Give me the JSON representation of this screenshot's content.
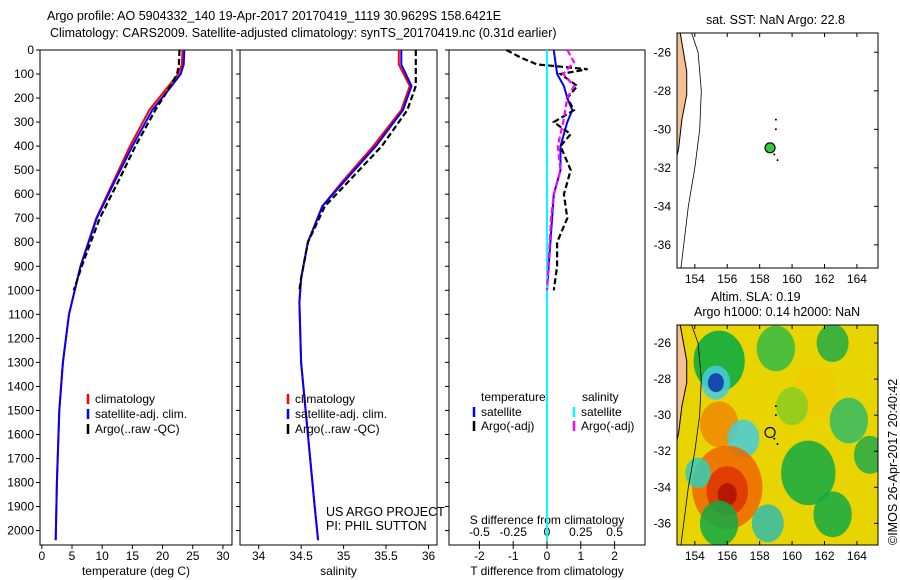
{
  "title_line1": "Argo profile: AO 5904332_140 19-Apr-2017 20170419_1119 30.9629S 158.6421E",
  "title_line2": "Climatology: CARS2009. Satellite-adjusted climatology: synTS_20170419.nc (0.31d earlier)",
  "project_line1": "US ARGO PROJECT",
  "project_line2": "PI: PHIL SUTTON",
  "map1_title": "sat. SST: NaN Argo: 22.8",
  "map2_title1": "Altim. SLA: 0.19",
  "map2_title2": "Argo h1000: 0.14 h2000: NaN",
  "credit": "©IMOS 26-Apr-2017 20:40:42",
  "colors": {
    "climatology": "#ff0000",
    "satellite": "#0000ff",
    "argo": "#000000",
    "sal_sat": "#00ffff",
    "sal_argo": "#ff00ff",
    "land": "#f5c193",
    "point": "#33cc33"
  },
  "chart_data": [
    {
      "type": "line",
      "name": "temperature",
      "xlabel": "temperature (deg C)",
      "ylabel": "",
      "xlim": [
        -0.3,
        31.5
      ],
      "ylim": [
        2060,
        0
      ],
      "xticks": [
        "0",
        "5",
        "10",
        "15",
        "20",
        "25",
        "30"
      ],
      "yticks": [
        "0",
        "100",
        "200",
        "300",
        "400",
        "500",
        "600",
        "700",
        "800",
        "900",
        "1000",
        "1100",
        "1200",
        "1300",
        "1400",
        "1500",
        "1600",
        "1700",
        "1800",
        "1900",
        "2000"
      ],
      "legend": [
        "climatology",
        "satellite-adj. clim.",
        "Argo(..raw -QC)"
      ],
      "series": [
        {
          "name": "climatology",
          "color": "#ff0000",
          "depth": [
            0,
            60,
            100,
            150,
            250,
            400,
            550,
            700,
            900,
            1100,
            1300,
            1500,
            1800,
            2040
          ],
          "values": [
            23.3,
            23.2,
            22.6,
            21,
            17.8,
            14.6,
            11.8,
            9,
            6.4,
            4.5,
            3.5,
            2.9,
            2.5,
            2.3
          ]
        },
        {
          "name": "satellite-adj. clim.",
          "color": "#0000ff",
          "depth": [
            0,
            60,
            100,
            150,
            250,
            400,
            550,
            700,
            900,
            1100,
            1300,
            1500,
            1800,
            2040
          ],
          "values": [
            23.6,
            23.5,
            23,
            21.5,
            18.3,
            15,
            12,
            9.1,
            6.4,
            4.5,
            3.5,
            2.9,
            2.5,
            2.3
          ]
        },
        {
          "name": "Argo(..raw -QC)",
          "color": "#000000",
          "dash": true,
          "depth": [
            0,
            60,
            100,
            150,
            250,
            400,
            550,
            700,
            900,
            1000
          ],
          "values": [
            22.8,
            22.7,
            22.4,
            21.3,
            18.8,
            15.5,
            12.6,
            9.6,
            6.6,
            5.3
          ]
        }
      ]
    },
    {
      "type": "line",
      "name": "salinity",
      "xlabel": "salinity",
      "ylabel": "",
      "xlim": [
        33.78,
        36.1
      ],
      "ylim": [
        2060,
        0
      ],
      "xticks": [
        "34",
        "34.5",
        "35",
        "35.5",
        "36"
      ],
      "legend": [
        "climatology",
        "satellite-adj. clim.",
        "Argo(..raw -QC)"
      ],
      "series": [
        {
          "name": "climatology",
          "color": "#ff0000",
          "depth": [
            0,
            60,
            150,
            250,
            400,
            550,
            650,
            800,
            950,
            1050,
            1300,
            1600,
            1900,
            2040
          ],
          "values": [
            35.65,
            35.65,
            35.78,
            35.68,
            35.35,
            34.98,
            34.75,
            34.58,
            34.5,
            34.48,
            34.5,
            34.58,
            34.66,
            34.7
          ]
        },
        {
          "name": "satellite-adj. clim.",
          "color": "#0000ff",
          "depth": [
            0,
            60,
            150,
            250,
            400,
            550,
            650,
            800,
            950,
            1050,
            1300,
            1600,
            1900,
            2040
          ],
          "values": [
            35.68,
            35.68,
            35.8,
            35.7,
            35.38,
            35,
            34.75,
            34.58,
            34.5,
            34.48,
            34.5,
            34.58,
            34.66,
            34.7
          ]
        },
        {
          "name": "Argo(..raw -QC)",
          "color": "#000000",
          "dash": true,
          "depth": [
            0,
            60,
            150,
            250,
            400,
            550,
            650,
            800,
            950,
            1000
          ],
          "values": [
            35.85,
            35.85,
            35.85,
            35.75,
            35.45,
            35.05,
            34.78,
            34.58,
            34.5,
            34.48
          ]
        }
      ]
    },
    {
      "type": "line",
      "name": "difference",
      "xlabel": "T difference from climatology",
      "xlabel2": "S difference from climatology",
      "xlim": [
        -2.9,
        2.9
      ],
      "ylim": [
        2060,
        0
      ],
      "xticks": [
        "-2",
        "-1",
        "0",
        "1",
        "2"
      ],
      "xticks2": [
        "-0.5",
        "-0.25",
        "0",
        "0.25",
        "0.5"
      ],
      "legend_t": {
        "title": "temperature",
        "items": [
          "satellite",
          "Argo(-adj)"
        ]
      },
      "legend_s": {
        "title": "salinity",
        "items": [
          "satellite",
          "Argo(-adj)"
        ]
      },
      "series": [
        {
          "name": "T satellite",
          "color": "#0000ff",
          "scale": "T",
          "depth": [
            0,
            50,
            100,
            150,
            200,
            250,
            300,
            400,
            500,
            600,
            700,
            800,
            900,
            1000,
            1200,
            1500,
            2040
          ],
          "values": [
            0.2,
            0.25,
            0.3,
            0.5,
            0.6,
            0.75,
            0.6,
            0.4,
            0.4,
            0.2,
            0.15,
            0.1,
            0.05,
            0,
            0,
            0,
            0
          ]
        },
        {
          "name": "T Argo(-adj)",
          "color": "#000000",
          "dash": true,
          "scale": "T",
          "depth": [
            0,
            30,
            60,
            80,
            100,
            150,
            200,
            250,
            300,
            350,
            400,
            500,
            600,
            700,
            800,
            900,
            1000
          ],
          "values": [
            -1.2,
            -0.8,
            -0.3,
            1.2,
            0.4,
            0.9,
            0.6,
            0.8,
            0.2,
            0.7,
            0.4,
            0.7,
            0.5,
            0.6,
            0.3,
            0.3,
            0.2
          ]
        },
        {
          "name": "S satellite",
          "color": "#00ffff",
          "scale": "S",
          "depth": [
            0,
            500,
            1000,
            2040
          ],
          "values": [
            0,
            0,
            0,
            0
          ]
        },
        {
          "name": "S Argo(-adj)",
          "color": "#ff00ff",
          "dash": true,
          "scale": "S",
          "depth": [
            0,
            50,
            100,
            150,
            200,
            300,
            400,
            500,
            600,
            700,
            800,
            900,
            1000
          ],
          "values": [
            0.15,
            0.2,
            0.12,
            0.2,
            0.15,
            0.12,
            0.08,
            0.1,
            0.05,
            0.03,
            0.02,
            0.01,
            0
          ]
        }
      ]
    },
    {
      "type": "scatter",
      "name": "map-sst",
      "title": "sat. SST: NaN Argo: 22.8",
      "xlim": [
        152.9,
        165.3
      ],
      "ylim": [
        -37.2,
        -25
      ],
      "xticks": [
        "154",
        "156",
        "158",
        "160",
        "162",
        "164"
      ],
      "yticks": [
        "-26",
        "-28",
        "-30",
        "-32",
        "-34",
        "-36"
      ],
      "points": [
        {
          "lon": 158.64,
          "lat": -30.96
        }
      ]
    },
    {
      "type": "heatmap",
      "name": "map-sla",
      "title": "Altim. SLA: 0.19",
      "xlim": [
        152.9,
        165.3
      ],
      "ylim": [
        -37.2,
        -25
      ],
      "xticks": [
        "154",
        "156",
        "158",
        "160",
        "162",
        "164"
      ],
      "yticks": [
        "-26",
        "-28",
        "-30",
        "-32",
        "-34",
        "-36"
      ],
      "points": [
        {
          "lon": 158.64,
          "lat": -30.96
        }
      ]
    }
  ]
}
